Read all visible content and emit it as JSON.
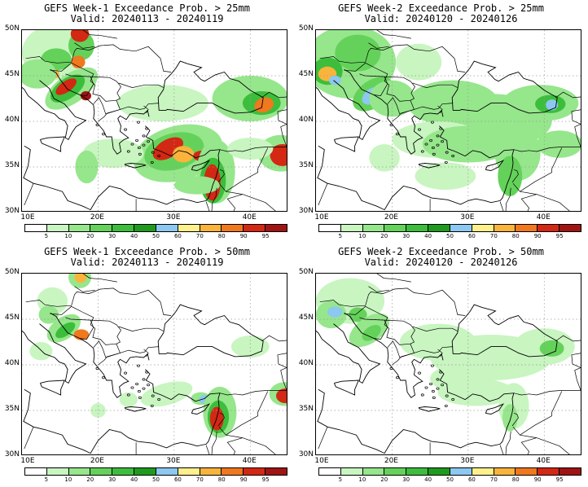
{
  "panels": [
    {
      "title": "GEFS Week-1 Exceedance Prob. > 25mm",
      "valid": "Valid: 20240113 - 20240119"
    },
    {
      "title": "GEFS Week-2 Exceedance Prob. > 25mm",
      "valid": "Valid: 20240120 - 20240126"
    },
    {
      "title": "GEFS Week-1 Exceedance Prob. > 50mm",
      "valid": "Valid: 20240113 - 20240119"
    },
    {
      "title": "GEFS Week-2 Exceedance Prob. > 50mm",
      "valid": "Valid: 20240120 - 20240126"
    }
  ],
  "lat_labels": [
    "50N",
    "45N",
    "40N",
    "35N",
    "30N"
  ],
  "lon_labels": [
    "10E",
    "20E",
    "30E",
    "40E"
  ],
  "colorbar": {
    "labels": [
      "5",
      "10",
      "20",
      "30",
      "40",
      "50",
      "60",
      "70",
      "80",
      "90",
      "95"
    ],
    "colors": [
      "#ffffff",
      "#c8f5c0",
      "#96e68c",
      "#64d25a",
      "#3cbe3c",
      "#1e9b1e",
      "#8cc8f0",
      "#fff08c",
      "#fab43c",
      "#f0781e",
      "#d22814",
      "#a01414"
    ]
  }
}
